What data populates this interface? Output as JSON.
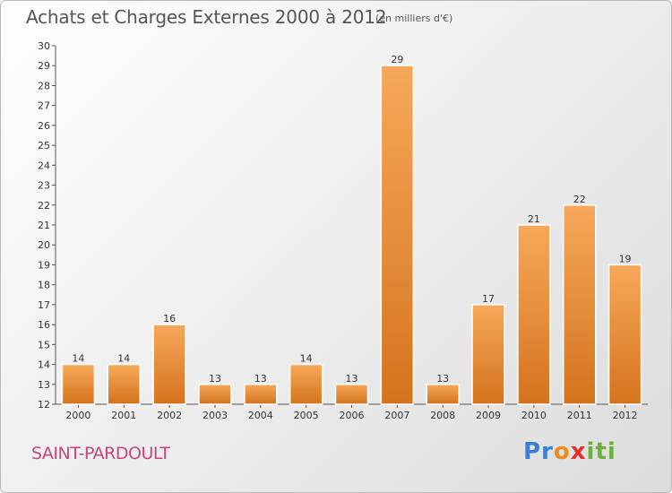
{
  "title": "Achats et Charges Externes 2000 à 2012",
  "subtitle": "(en milliers d'€)",
  "commune": "SAINT-PARDOULT",
  "logo": {
    "p1": "Pr",
    "p2": "o",
    "p3": "x",
    "p4": "iti"
  },
  "colors": {
    "bar_light": "#f7a85a",
    "bar_dark": "#d4741c",
    "commune": "#c8467a"
  },
  "chart_data": {
    "type": "bar",
    "title": "Achats et Charges Externes 2000 à 2012",
    "subtitle": "(en milliers d'€)",
    "categories": [
      "2000",
      "2001",
      "2002",
      "2003",
      "2004",
      "2005",
      "2006",
      "2007",
      "2008",
      "2009",
      "2010",
      "2011",
      "2012"
    ],
    "values": [
      14,
      14,
      16,
      13,
      13,
      14,
      13,
      29,
      13,
      17,
      21,
      22,
      19
    ],
    "ylim": [
      12,
      30
    ],
    "yticks": [
      12,
      13,
      14,
      15,
      16,
      17,
      18,
      19,
      20,
      21,
      22,
      23,
      24,
      25,
      26,
      27,
      28,
      29,
      30
    ],
    "grid": false,
    "data_labels": true
  }
}
